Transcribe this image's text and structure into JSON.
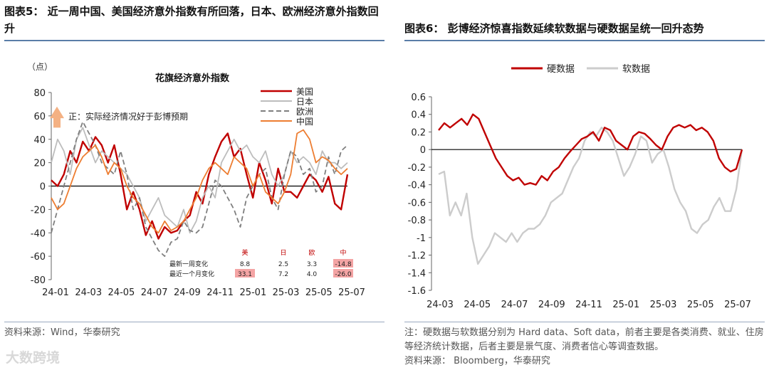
{
  "left_panel": {
    "title": "图表5：  近一周中国、美国经济意外指数有所回落，日本、欧洲经济意外指数回升",
    "source": "资料来源：Wind，华泰研究"
  },
  "right_panel": {
    "title": "图表6：  彭博经济惊喜指数延续软数据与硬数据呈统一回升态势",
    "note": "注：硬数据与软数据分别为 Hard data、Soft data，前者主要是各类消费、就业、住房等经济统计数据，后者主要是景气度、消费者信心等调查数据。",
    "source": "资料来源：  Bloomberg，华泰研究"
  },
  "watermark": "大数跨境",
  "chart_data": [
    {
      "type": "line",
      "title": "花旗经济意外指数",
      "ylabel": "（点）",
      "ylim": [
        -80,
        80
      ],
      "yticks": [
        80,
        60,
        40,
        20,
        0,
        -20,
        -40,
        -60,
        -80
      ],
      "xtick_labels": [
        "24-01",
        "24-03",
        "24-05",
        "24-07",
        "24-09",
        "24-11",
        "25-01",
        "25-03",
        "25-05",
        "25-07"
      ],
      "annotation": "正：实际经济情况好于彭博预期",
      "series": [
        {
          "name": "美国",
          "color": "#c00000",
          "dash": "",
          "values": [
            5,
            0,
            10,
            30,
            20,
            38,
            30,
            42,
            35,
            20,
            35,
            10,
            -20,
            -5,
            -20,
            -42,
            -30,
            -45,
            -35,
            -40,
            -38,
            -30,
            -25,
            -5,
            -15,
            10,
            25,
            38,
            45,
            25,
            32,
            10,
            -10,
            20,
            5,
            -15,
            15,
            -5,
            -5,
            -10,
            0,
            10,
            5,
            -5,
            8,
            -15,
            -20,
            10
          ]
        },
        {
          "name": "日本",
          "color": "#bdbdbd",
          "dash": "",
          "values": [
            20,
            40,
            30,
            10,
            40,
            50,
            35,
            20,
            30,
            25,
            20,
            15,
            10,
            0,
            -10,
            -30,
            -20,
            -10,
            -25,
            -30,
            -35,
            -20,
            -40,
            -30,
            -10,
            0,
            -10,
            20,
            30,
            40,
            30,
            35,
            25,
            20,
            30,
            10,
            0,
            10,
            30,
            20,
            25,
            20,
            10,
            30,
            20,
            20,
            15,
            20
          ]
        },
        {
          "name": "欧洲",
          "color": "#7f7f7f",
          "dash": "7,4",
          "values": [
            -40,
            -20,
            0,
            20,
            40,
            55,
            45,
            35,
            20,
            15,
            10,
            30,
            10,
            -20,
            -10,
            -35,
            -45,
            -55,
            -60,
            -48,
            -45,
            -30,
            -38,
            -40,
            -35,
            -15,
            5,
            0,
            -10,
            -20,
            -35,
            -10,
            0,
            10,
            15,
            -10,
            -20,
            10,
            30,
            25,
            10,
            15,
            -5,
            0,
            25,
            10,
            30,
            35
          ]
        },
        {
          "name": "中国",
          "color": "#ed7d31",
          "dash": "",
          "values": [
            -10,
            -20,
            -15,
            0,
            15,
            25,
            30,
            35,
            25,
            10,
            20,
            15,
            0,
            -10,
            -15,
            -25,
            -35,
            -40,
            -30,
            -38,
            -35,
            -30,
            -20,
            -10,
            5,
            15,
            20,
            15,
            10,
            25,
            20,
            15,
            0,
            10,
            -5,
            -10,
            -15,
            -5,
            10,
            45,
            48,
            40,
            20,
            25,
            22,
            15,
            10,
            15
          ]
        }
      ],
      "table": {
        "headers": [
          "美",
          "日",
          "欧",
          "中"
        ],
        "rows": [
          {
            "label": "最新一周变化",
            "values": [
              "8.8",
              "2.5",
              "3.3",
              "-14.8"
            ]
          },
          {
            "label": "最近一个月变化",
            "values": [
              "33.1",
              "7.2",
              "4.0",
              "-26.0"
            ]
          }
        ]
      },
      "legend_position": "top-right",
      "grid": false
    },
    {
      "type": "line",
      "ylim": [
        -1.6,
        0.6
      ],
      "yticks": [
        "0.6",
        "0.4",
        "0.2",
        "0",
        "-0.2",
        "-0.4",
        "-0.6",
        "-0.8",
        "-1",
        "-1.2",
        "-1.4",
        "-1.6"
      ],
      "xtick_labels": [
        "24-03",
        "24-05",
        "24-07",
        "24-09",
        "24-11",
        "25-01",
        "25-03",
        "25-05",
        "25-07"
      ],
      "series": [
        {
          "name": "硬数据",
          "color": "#c00000",
          "values": [
            0.22,
            0.3,
            0.25,
            0.3,
            0.35,
            0.28,
            0.4,
            0.35,
            0.2,
            0.05,
            -0.1,
            -0.2,
            -0.3,
            -0.35,
            -0.32,
            -0.4,
            -0.38,
            -0.4,
            -0.3,
            -0.35,
            -0.25,
            -0.2,
            -0.1,
            -0.02,
            0.05,
            0.12,
            0.15,
            0.2,
            0.1,
            0.25,
            0.22,
            0.1,
            0.05,
            0.0,
            0.15,
            0.2,
            0.18,
            0.12,
            0.05,
            0.0,
            0.15,
            0.25,
            0.28,
            0.25,
            0.28,
            0.22,
            0.25,
            0.2,
            0.1,
            -0.1,
            -0.2,
            -0.25,
            -0.22,
            -0.0
          ]
        },
        {
          "name": "软数据",
          "color": "#cccccc",
          "values": [
            -0.28,
            -0.25,
            -0.75,
            -0.6,
            -0.75,
            -0.5,
            -1.0,
            -1.3,
            -1.2,
            -1.1,
            -0.95,
            -1.0,
            -1.05,
            -0.95,
            -1.05,
            -0.95,
            -0.9,
            -0.9,
            -0.85,
            -0.75,
            -0.6,
            -0.55,
            -0.5,
            -0.35,
            -0.2,
            -0.1,
            0.1,
            0.2,
            0.15,
            0.25,
            0.2,
            0.1,
            -0.1,
            -0.3,
            -0.2,
            -0.05,
            0.15,
            0.1,
            -0.15,
            -0.05,
            0.0,
            -0.2,
            -0.45,
            -0.6,
            -0.7,
            -0.9,
            -0.95,
            -0.85,
            -0.8,
            -0.65,
            -0.55,
            -0.7,
            -0.7,
            -0.45,
            0.0
          ]
        }
      ],
      "legend_position": "top",
      "grid": false
    }
  ]
}
